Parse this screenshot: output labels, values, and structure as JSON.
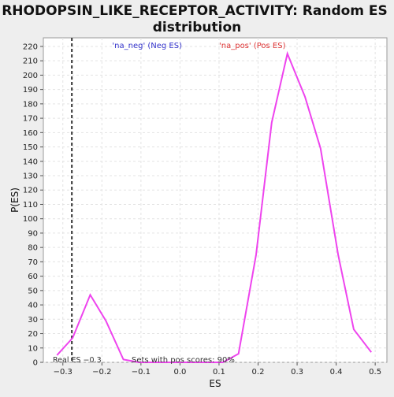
{
  "chart_data": {
    "type": "line",
    "title_line1": "RHODOPSIN_LIKE_RECEPTOR_ACTIVITY: Random ES",
    "title_line2": "distribution",
    "xlabel": "ES",
    "ylabel": "P(ES)",
    "xlim": [
      -0.35,
      0.53
    ],
    "ylim": [
      0,
      226
    ],
    "x_ticks": [
      -0.3,
      -0.2,
      -0.1,
      0.0,
      0.1,
      0.2,
      0.3,
      0.4,
      0.5
    ],
    "x_tick_labels": [
      "−0.3",
      "−0.2",
      "−0.1",
      "0.0",
      "0.1",
      "0.2",
      "0.3",
      "0.4",
      "0.5"
    ],
    "y_ticks": [
      0,
      10,
      20,
      30,
      40,
      50,
      60,
      70,
      80,
      90,
      100,
      110,
      120,
      130,
      140,
      150,
      160,
      170,
      180,
      190,
      200,
      210,
      220
    ],
    "y_tick_labels": [
      "0",
      "10",
      "20",
      "30",
      "40",
      "50",
      "60",
      "70",
      "80",
      "90",
      "100",
      "110",
      "120",
      "130",
      "140",
      "150",
      "160",
      "170",
      "180",
      "190",
      "200",
      "210",
      "220"
    ],
    "grid": true,
    "legend": {
      "placement": "top-center",
      "items": [
        {
          "label": "'na_neg' (Neg ES)",
          "color": "#3333cc"
        },
        {
          "label": "'na_pos' (Pos ES)",
          "color": "#dd3333"
        }
      ]
    },
    "series": [
      {
        "color": "#ee44ee",
        "x": [
          -0.315,
          -0.275,
          -0.23,
          -0.19,
          -0.145,
          -0.105,
          -0.06,
          -0.02,
          0.025,
          0.065,
          0.11,
          0.15,
          0.195,
          0.235,
          0.275,
          0.32,
          0.36,
          0.405,
          0.445,
          0.49
        ],
        "y": [
          5,
          17,
          47,
          29,
          2,
          0,
          0,
          0,
          0,
          0,
          0,
          6,
          75,
          167,
          215,
          185,
          149,
          75,
          23,
          7
        ]
      }
    ],
    "real_es": {
      "x": -0.277,
      "label": "Real ES −0.3"
    },
    "annotation": "Sets with pos scores: 90%"
  }
}
